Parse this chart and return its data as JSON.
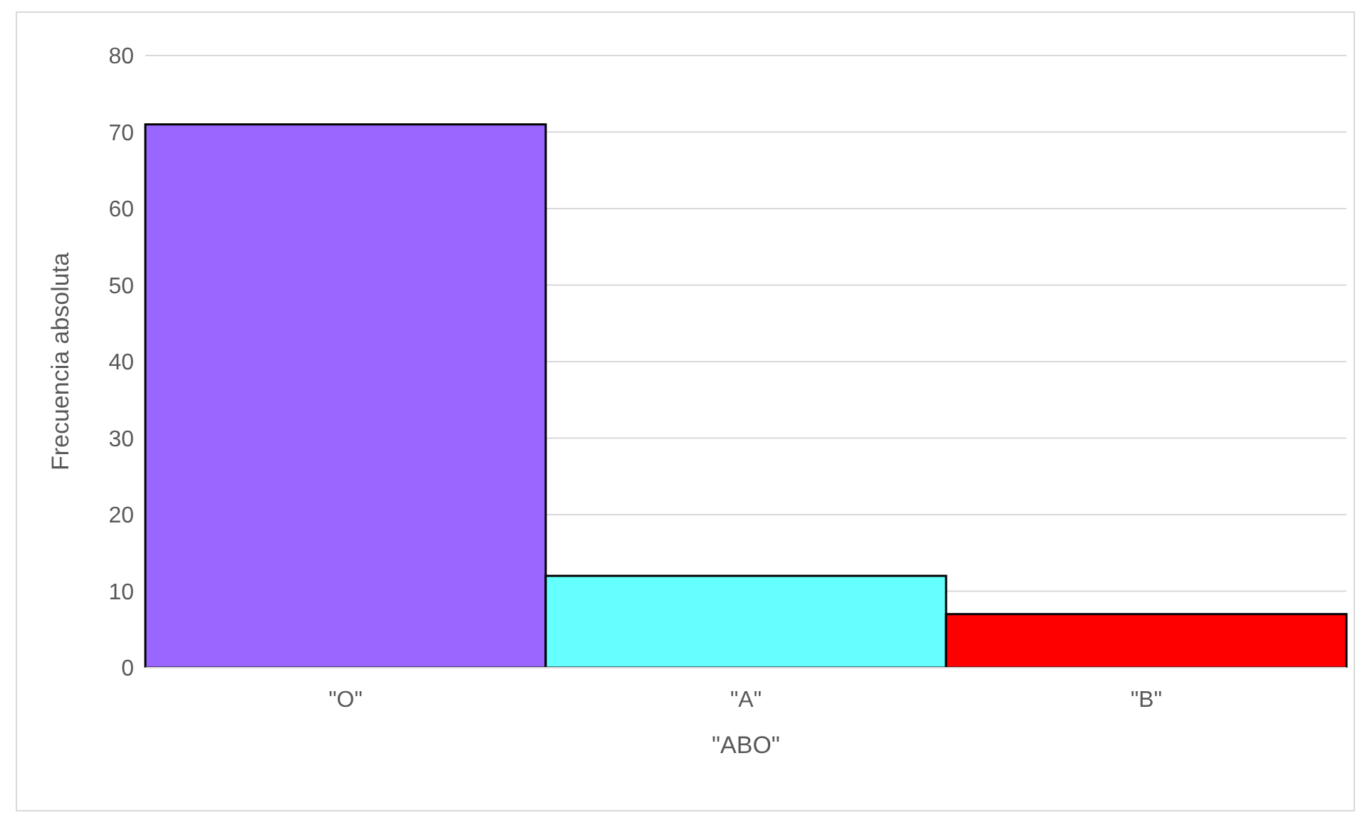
{
  "chart_data": {
    "type": "bar",
    "categories": [
      "\"O\"",
      "\"A\"",
      "\"B\""
    ],
    "values": [
      71,
      12,
      7
    ],
    "colors": [
      "#9966ff",
      "#66ffff",
      "#ff0000"
    ],
    "xlabel": "\"ABO\"",
    "ylabel": "Frecuencia absoluta",
    "ylim": [
      0,
      80
    ],
    "yticks": [
      0,
      10,
      20,
      30,
      40,
      50,
      60,
      70,
      80
    ],
    "grid": "y",
    "legend": false
  }
}
